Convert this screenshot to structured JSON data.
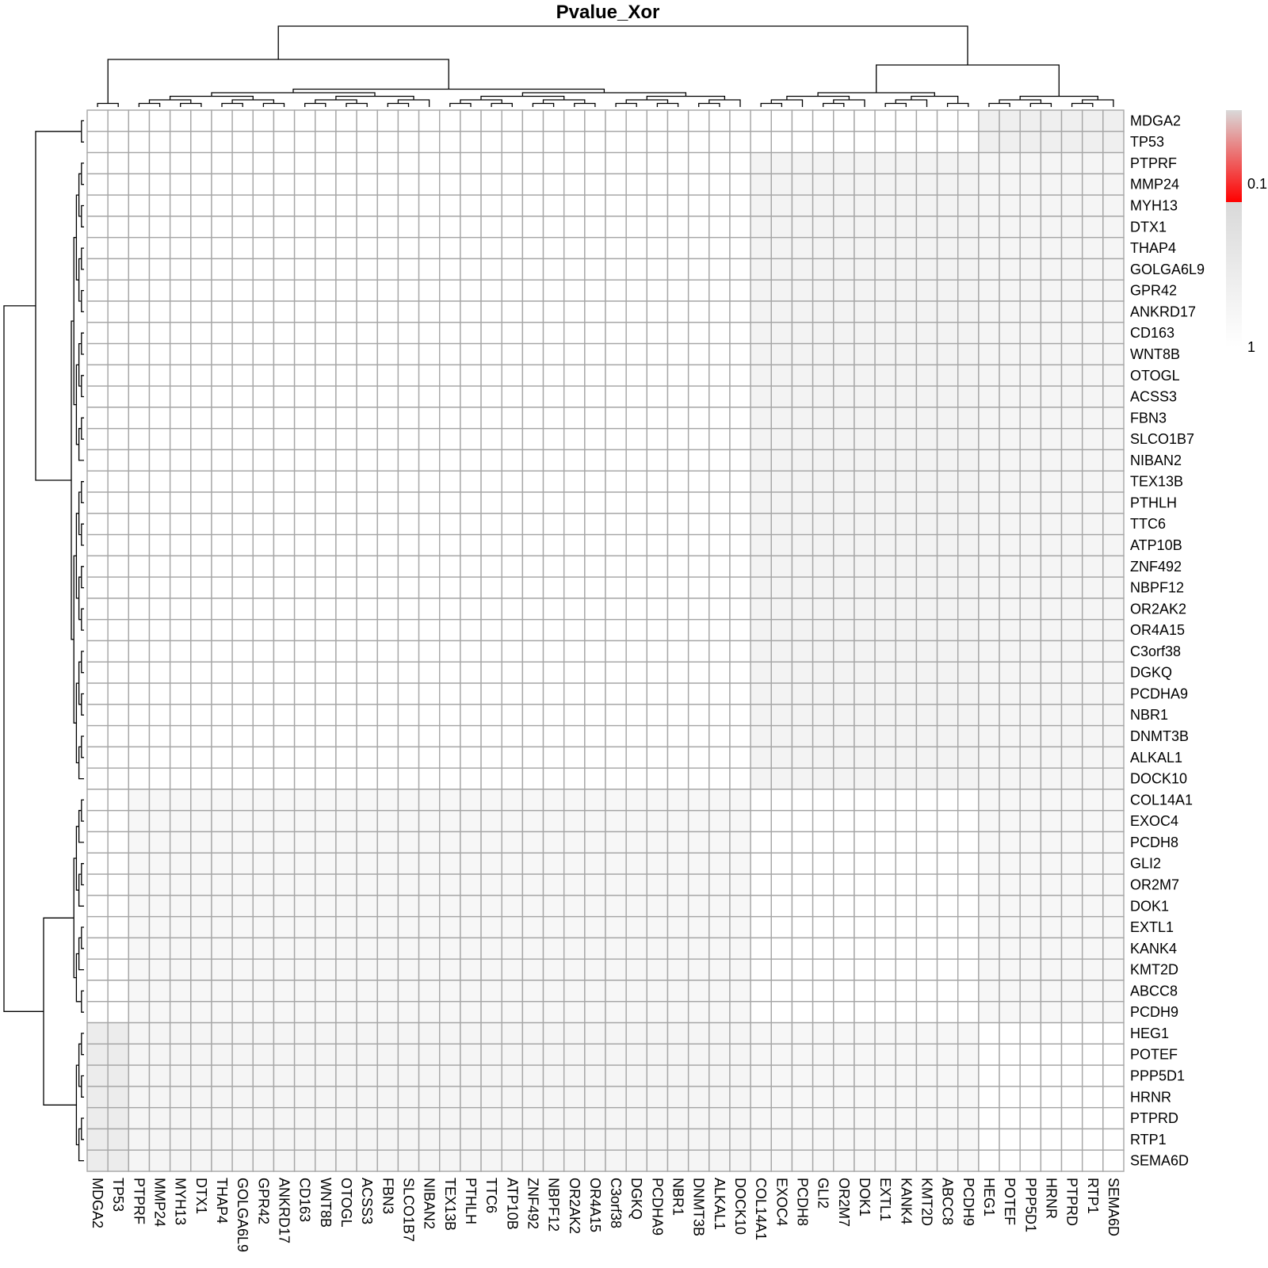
{
  "chart_data": {
    "type": "heatmap",
    "title": "Pvalue_Xor",
    "rows": [
      "MDGA2",
      "TP53",
      "PTPRF",
      "MMP24",
      "MYH13",
      "DTX1",
      "THAP4",
      "GOLGA6L9",
      "GPR42",
      "ANKRD17",
      "CD163",
      "WNT8B",
      "OTOGL",
      "ACSS3",
      "FBN3",
      "SLCO1B7",
      "NIBAN2",
      "TEX13B",
      "PTHLH",
      "TTC6",
      "ATP10B",
      "ZNF492",
      "NBPF12",
      "OR2AK2",
      "OR4A15",
      "C3orf38",
      "DGKQ",
      "PCDHA9",
      "NBR1",
      "DNMT3B",
      "ALKAL1",
      "DOCK10",
      "COL14A1",
      "EXOC4",
      "PCDH8",
      "GLI2",
      "OR2M7",
      "DOK1",
      "EXTL1",
      "KANK4",
      "KMT2D",
      "ABCC8",
      "PCDH9",
      "HEG1",
      "POTEF",
      "PPP5D1",
      "HRNR",
      "PTPRD",
      "RTP1",
      "SEMA6D"
    ],
    "columns": [
      "MDGA2",
      "TP53",
      "PTPRF",
      "MMP24",
      "MYH13",
      "DTX1",
      "THAP4",
      "GOLGA6L9",
      "GPR42",
      "ANKRD17",
      "CD163",
      "WNT8B",
      "OTOGL",
      "ACSS3",
      "FBN3",
      "SLCO1B7",
      "NIBAN2",
      "TEX13B",
      "PTHLH",
      "TTC6",
      "ATP10B",
      "ZNF492",
      "NBPF12",
      "OR2AK2",
      "OR4A15",
      "C3orf38",
      "DGKQ",
      "PCDHA9",
      "NBR1",
      "DNMT3B",
      "ALKAL1",
      "DOCK10",
      "COL14A1",
      "EXOC4",
      "PCDH8",
      "GLI2",
      "OR2M7",
      "DOK1",
      "EXTL1",
      "KANK4",
      "KMT2D",
      "ABCC8",
      "PCDH9",
      "HEG1",
      "POTEF",
      "PPP5D1",
      "HRNR",
      "PTPRD",
      "RTP1",
      "SEMA6D"
    ],
    "groups": [
      {
        "start": 0,
        "end": 1
      },
      {
        "start": 2,
        "end": 31
      },
      {
        "start": 32,
        "end": 42
      },
      {
        "start": 43,
        "end": 49
      }
    ],
    "block_values": [
      [
        1.0,
        1.0,
        1.0,
        0.5
      ],
      [
        1.0,
        1.0,
        0.6,
        0.65
      ],
      [
        1.0,
        0.7,
        1.0,
        0.7
      ],
      [
        0.45,
        0.65,
        0.7,
        1.0
      ]
    ],
    "legend": {
      "ticks": [
        {
          "label": "0.1",
          "value": 0.1
        },
        {
          "label": "1",
          "value": 1
        }
      ],
      "colors": [
        "#ff0000",
        "#d9d9d9",
        "#ffffff"
      ]
    },
    "grid": true,
    "grid_color": "#a6a6a6",
    "dendrogram_color": "#000000"
  }
}
